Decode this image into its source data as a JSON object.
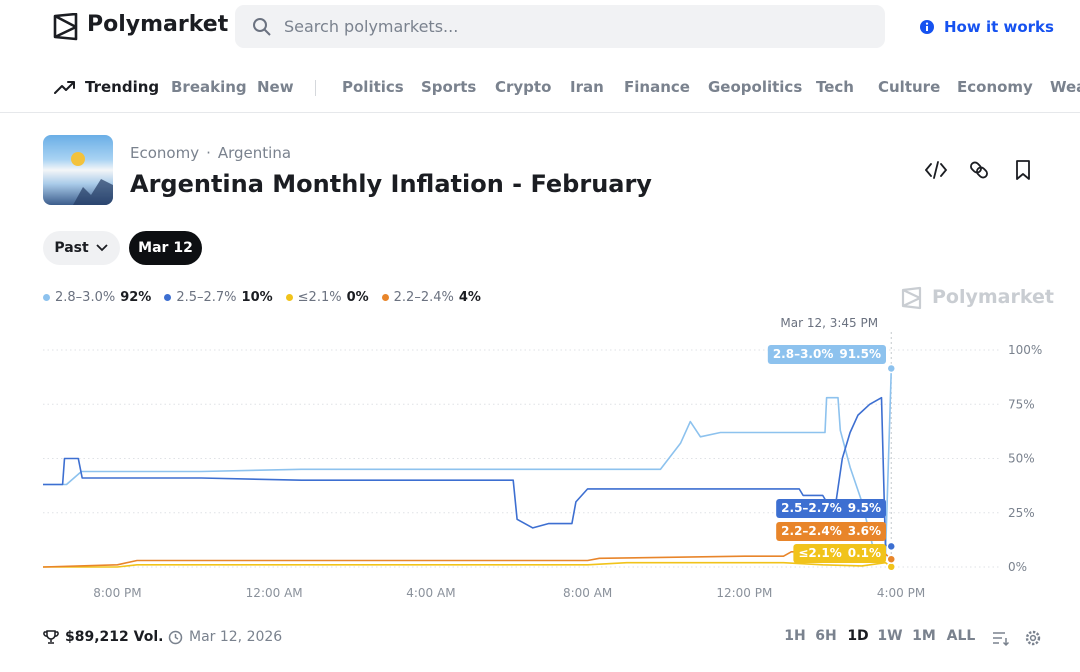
{
  "header": {
    "logo": "Polymarket",
    "search_placeholder": "Search polymarkets...",
    "how_it_works": "How it works"
  },
  "nav": [
    "Trending",
    "Breaking",
    "New",
    "Politics",
    "Sports",
    "Crypto",
    "Iran",
    "Finance",
    "Geopolitics",
    "Tech",
    "Culture",
    "Economy",
    "Wea"
  ],
  "market": {
    "breadcrumb": [
      "Economy",
      "Argentina"
    ],
    "title": "Argentina Monthly Inflation - February",
    "filters": [
      "Past",
      "Mar 12"
    ]
  },
  "chart_data": {
    "type": "line",
    "watermark": "Polymarket",
    "hover_label": "Mar 12, 3:45 PM",
    "xlim": [
      18.1,
      42.5
    ],
    "xticks": [
      {
        "value": 20,
        "label": "8:00 PM"
      },
      {
        "value": 24,
        "label": "12:00 AM"
      },
      {
        "value": 28,
        "label": "4:00 AM"
      },
      {
        "value": 32,
        "label": "8:00 AM"
      },
      {
        "value": 36,
        "label": "12:00 PM"
      },
      {
        "value": 40,
        "label": "4:00 PM"
      }
    ],
    "ylim": [
      0,
      100
    ],
    "yticks": [
      {
        "value": 0,
        "label": "0%"
      },
      {
        "value": 25,
        "label": "25%"
      },
      {
        "value": 50,
        "label": "50%"
      },
      {
        "value": 75,
        "label": "75%"
      },
      {
        "value": 100,
        "label": "100%"
      }
    ],
    "grid": true,
    "series": [
      {
        "name": "2.8–3.0%",
        "color": "#8dc2ee",
        "legend_label": "92%",
        "end_label": "91.5%",
        "x": [
          18.1,
          18.7,
          19.08,
          22.14,
          24.69,
          27.24,
          29.78,
          32.33,
          33.86,
          34.37,
          34.62,
          34.88,
          35.39,
          37.43,
          38.06,
          38.1,
          38.39,
          38.45,
          38.7,
          39.0,
          39.34,
          39.6,
          39.75
        ],
        "values": [
          38,
          38,
          44,
          44,
          45,
          45,
          45,
          45,
          45,
          57,
          67,
          60,
          62,
          62,
          62,
          78,
          78,
          63,
          46,
          30,
          5,
          4,
          91.5
        ]
      },
      {
        "name": "2.5–2.7%",
        "color": "#3d6fd1",
        "legend_label": "10%",
        "end_label": "9.5%",
        "x": [
          18.1,
          18.6,
          18.65,
          19.0,
          19.1,
          22.14,
          24.69,
          27.24,
          30.1,
          30.2,
          30.6,
          31.0,
          31.6,
          31.7,
          32.0,
          33.86,
          36.0,
          37.4,
          37.5,
          38.0,
          38.1,
          38.3,
          38.5,
          38.7,
          38.9,
          39.2,
          39.5,
          39.6,
          39.75
        ],
        "values": [
          38,
          38,
          50,
          50,
          41,
          41,
          40,
          40,
          40,
          22,
          18,
          20,
          20,
          30,
          36,
          36,
          36,
          36,
          33,
          33,
          30,
          25,
          50,
          62,
          70,
          75,
          78,
          10,
          9.5
        ]
      },
      {
        "name": "≤2.1%",
        "color": "#f1c31a",
        "legend_label": "0%",
        "end_label": "0.1%",
        "x": [
          18.1,
          20,
          20.5,
          32,
          33,
          37,
          38,
          39,
          39.6,
          39.75
        ],
        "values": [
          0,
          0,
          1,
          1,
          2,
          2,
          1,
          0.5,
          2,
          0.1
        ]
      },
      {
        "name": "2.2–2.4%",
        "color": "#e8852a",
        "legend_label": "4%",
        "end_label": "3.6%",
        "x": [
          18.1,
          20,
          20.5,
          24,
          29,
          32,
          32.3,
          36,
          37,
          37.2,
          39,
          39.6,
          39.75
        ],
        "values": [
          0,
          1,
          3,
          3,
          3,
          3,
          4,
          5,
          5,
          7,
          7,
          6,
          3.6
        ]
      }
    ]
  },
  "footer": {
    "volume": "$89,212 Vol.",
    "date": "Mar 12, 2026",
    "ranges": [
      "1H",
      "6H",
      "1D",
      "1W",
      "1M",
      "ALL"
    ]
  }
}
